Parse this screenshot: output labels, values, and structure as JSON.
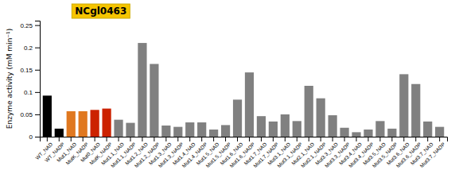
{
  "chart_data": {
    "type": "bar",
    "title": "NCgl0463",
    "categories": [
      "WT_NAD",
      "WT_NADP",
      "Mut1_NAD",
      "MutK_NADP",
      "Mut0_NAD",
      "MutK_NADP",
      "Mut1.1_NAD",
      "Mut1.1_NADP",
      "Mut1.2_NAD",
      "Mut1.2_NADP",
      "Mut1.3_NAD",
      "Mut1.3_NADP",
      "Mut1.4_NAD",
      "Mut1.4_NADP",
      "Mut1.5_NAD",
      "Mut1.5_NADP",
      "Mut1.6_NAD",
      "Mut1.6_NADP",
      "Mut1.7_NAD",
      "Mut1.7_NADP",
      "Mut3.1_NAD",
      "Mut3.1_NADP",
      "Mut2.1_NAD",
      "Mut2.1_NADP",
      "Mut3.3_NAD",
      "Mut3.3_NADP",
      "Mut3.4_NAD",
      "Mut3.4_NADP",
      "Mut3.5_NAD",
      "Mut3.5_NADP",
      "Mut3.6_NAD",
      "Mut3.6_NADP",
      "Mut3.7_NAD",
      "Mut3.7_NADP"
    ],
    "values": [
      0.092,
      0.018,
      0.057,
      0.057,
      0.06,
      0.063,
      0.038,
      0.031,
      0.21,
      0.163,
      0.025,
      0.022,
      0.032,
      0.032,
      0.016,
      0.026,
      0.083,
      0.144,
      0.046,
      0.034,
      0.05,
      0.035,
      0.114,
      0.086,
      0.048,
      0.02,
      0.01,
      0.016,
      0.035,
      0.018,
      0.14,
      0.118,
      0.034,
      0.022
    ],
    "colors": [
      "#000000",
      "#000000",
      "#E07820",
      "#E07820",
      "#CC2200",
      "#CC2200",
      "#808080",
      "#808080",
      "#808080",
      "#808080",
      "#808080",
      "#808080",
      "#808080",
      "#808080",
      "#808080",
      "#808080",
      "#808080",
      "#808080",
      "#808080",
      "#808080",
      "#808080",
      "#808080",
      "#808080",
      "#808080",
      "#808080",
      "#808080",
      "#808080",
      "#808080",
      "#808080",
      "#808080",
      "#808080",
      "#808080",
      "#808080",
      "#808080"
    ],
    "ylabel": "Enzyme activity (mM min⁻¹)",
    "ylim": [
      0,
      0.26
    ],
    "yticks": [
      0,
      0.05,
      0.1,
      0.15,
      0.2,
      0.25
    ]
  }
}
